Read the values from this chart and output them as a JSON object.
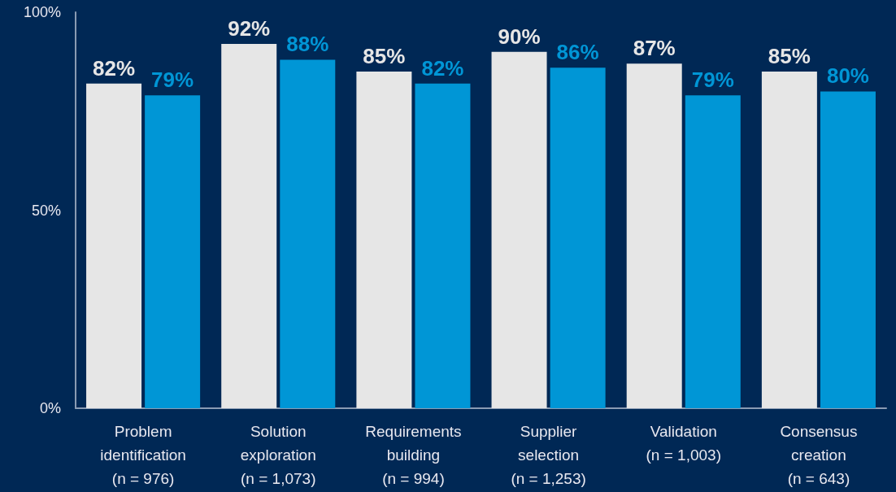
{
  "chart_data": {
    "type": "bar",
    "categories": [
      "Problem\nidentification\n(n = 976)",
      "Solution\nexploration\n(n = 1,073)",
      "Requirements\nbuilding\n(n = 994)",
      "Supplier\nselection\n(n = 1,253)",
      "Validation\n(n = 1,003)",
      "Consensus\ncreation\n(n = 643)"
    ],
    "series": [
      {
        "color": "#e6e6e6",
        "values": [
          82,
          92,
          85,
          90,
          87,
          85
        ],
        "value_labels": [
          "82%",
          "92%",
          "85%",
          "90%",
          "87%",
          "85%"
        ]
      },
      {
        "color": "#0096d6",
        "values": [
          79,
          88,
          82,
          86,
          79,
          80
        ],
        "value_labels": [
          "79%",
          "88%",
          "82%",
          "86%",
          "79%",
          "80%"
        ]
      }
    ],
    "ylim": [
      0,
      100
    ],
    "yticks": [
      {
        "value": 0,
        "label": "0%"
      },
      {
        "value": 50,
        "label": "50%"
      },
      {
        "value": 100,
        "label": "100%"
      }
    ],
    "grid": false
  }
}
